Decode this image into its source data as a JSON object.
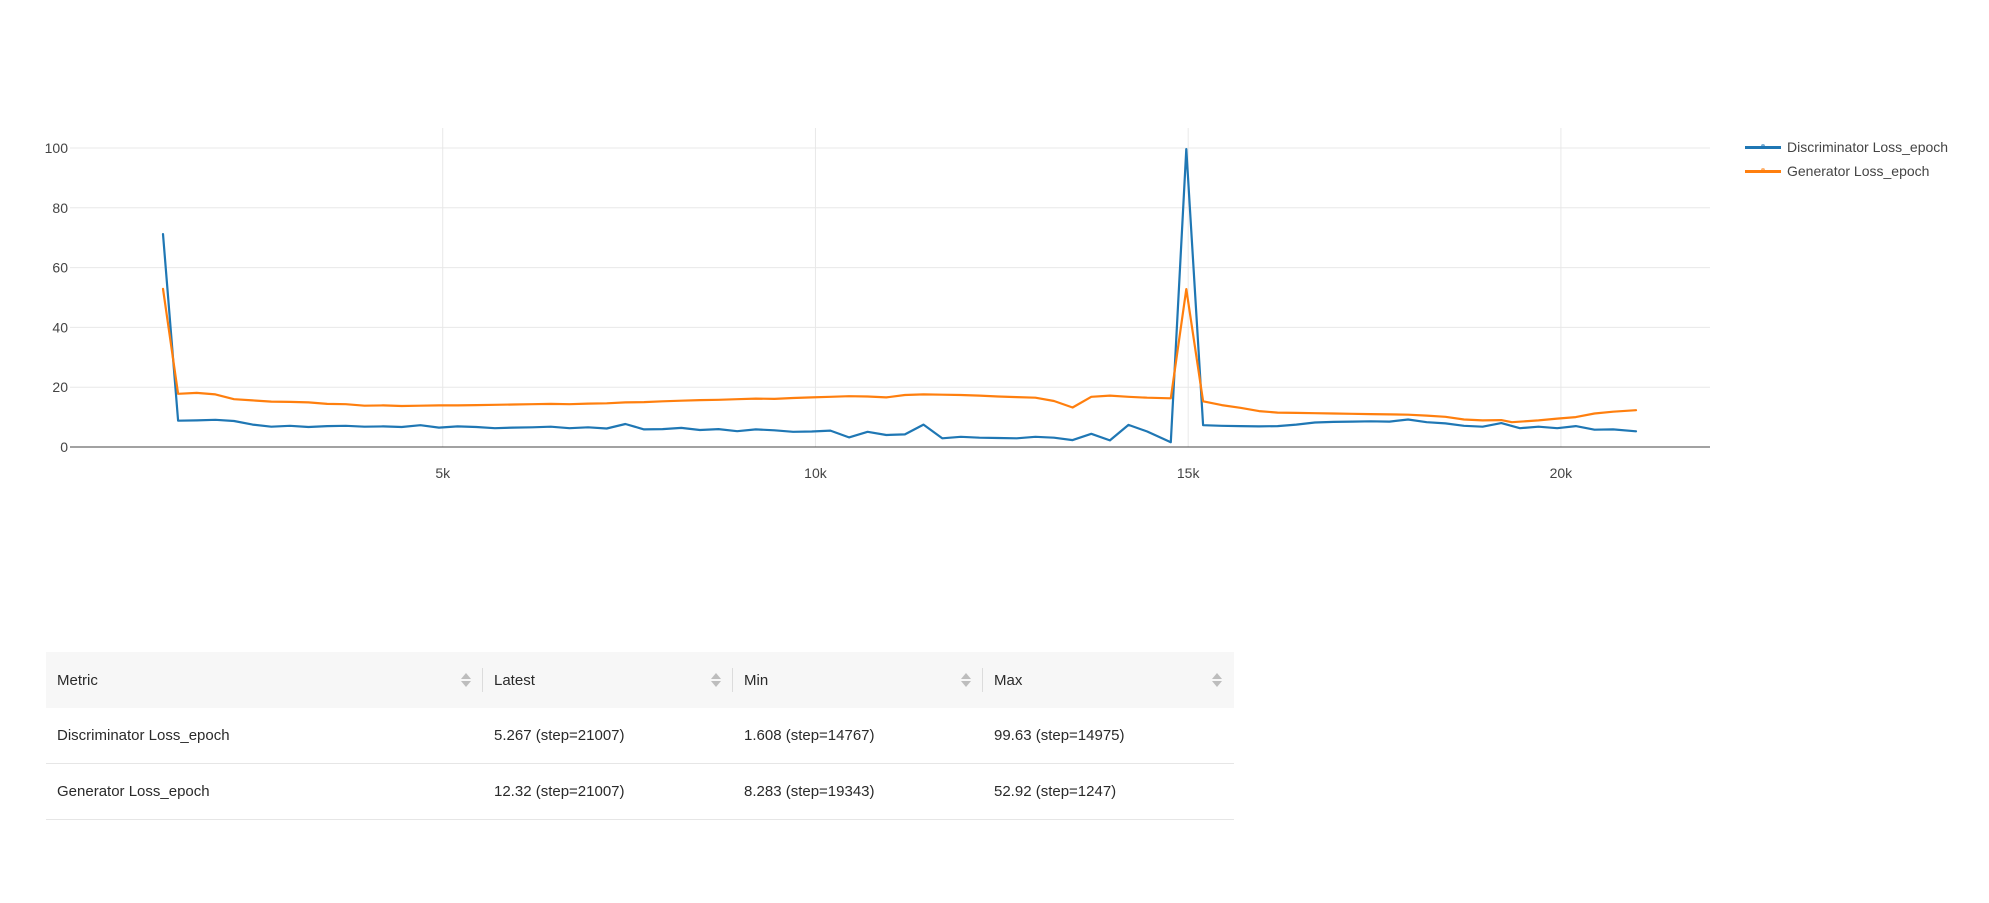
{
  "chart_data": {
    "type": "line",
    "title": "",
    "xlabel": "",
    "ylabel": "",
    "xlim": [
      0,
      22000
    ],
    "ylim": [
      0,
      100
    ],
    "x_ticks": [
      5000,
      10000,
      15000,
      20000
    ],
    "x_tick_labels": [
      "5k",
      "10k",
      "15k",
      "20k"
    ],
    "y_ticks": [
      0,
      20,
      40,
      60,
      80,
      100
    ],
    "y_tick_labels": [
      "0",
      "20",
      "40",
      "60",
      "80",
      "100"
    ],
    "grid": true,
    "legend_position": "top-right",
    "series": [
      {
        "name": "Discriminator Loss_epoch",
        "color": "#1f77b4",
        "x": [
          1247,
          1450,
          1700,
          1950,
          2200,
          2450,
          2700,
          2950,
          3200,
          3450,
          3700,
          3950,
          4200,
          4450,
          4700,
          4950,
          5200,
          5450,
          5700,
          5950,
          6200,
          6450,
          6700,
          6950,
          7200,
          7450,
          7700,
          7950,
          8200,
          8450,
          8700,
          8950,
          9200,
          9450,
          9700,
          9950,
          10200,
          10450,
          10700,
          10950,
          11200,
          11450,
          11700,
          11950,
          12200,
          12450,
          12700,
          12950,
          13200,
          13450,
          13700,
          13950,
          14200,
          14450,
          14767,
          14975,
          15200,
          15450,
          15700,
          15950,
          16200,
          16450,
          16700,
          16950,
          17200,
          17450,
          17700,
          17950,
          18200,
          18450,
          18700,
          18950,
          19200,
          19450,
          19700,
          19950,
          20200,
          20450,
          20700,
          21007
        ],
        "y": [
          71.2,
          8.8,
          8.9,
          9.1,
          8.7,
          7.5,
          6.8,
          7.1,
          6.7,
          7.0,
          7.1,
          6.8,
          6.9,
          6.7,
          7.3,
          6.5,
          6.9,
          6.7,
          6.3,
          6.5,
          6.6,
          6.8,
          6.3,
          6.6,
          6.2,
          7.7,
          5.9,
          6.0,
          6.4,
          5.7,
          6.0,
          5.3,
          5.9,
          5.6,
          5.1,
          5.2,
          5.5,
          3.2,
          5.1,
          4.0,
          4.2,
          7.5,
          2.9,
          3.4,
          3.1,
          3.0,
          2.9,
          3.4,
          3.1,
          2.3,
          4.4,
          2.2,
          7.4,
          5.2,
          1.608,
          99.63,
          7.3,
          7.1,
          7.0,
          6.9,
          7.0,
          7.5,
          8.2,
          8.4,
          8.5,
          8.6,
          8.5,
          9.2,
          8.3,
          7.9,
          7.1,
          6.8,
          8.0,
          6.3,
          6.8,
          6.3,
          7.0,
          5.8,
          5.9,
          5.267
        ]
      },
      {
        "name": "Generator Loss_epoch",
        "color": "#ff7f0e",
        "x": [
          1247,
          1450,
          1700,
          1950,
          2200,
          2450,
          2700,
          2950,
          3200,
          3450,
          3700,
          3950,
          4200,
          4450,
          4700,
          4950,
          5200,
          5450,
          5700,
          5950,
          6200,
          6450,
          6700,
          6950,
          7200,
          7450,
          7700,
          7950,
          8200,
          8450,
          8700,
          8950,
          9200,
          9450,
          9700,
          9950,
          10200,
          10450,
          10700,
          10950,
          11200,
          11450,
          11700,
          11950,
          12200,
          12450,
          12700,
          12950,
          13200,
          13450,
          13700,
          13950,
          14200,
          14450,
          14767,
          14975,
          15200,
          15450,
          15700,
          15950,
          16200,
          16450,
          16700,
          16950,
          17200,
          17450,
          17700,
          17950,
          18200,
          18450,
          18700,
          18950,
          19200,
          19343,
          19700,
          19950,
          20200,
          20450,
          20700,
          21007
        ],
        "y": [
          52.92,
          17.8,
          18.1,
          17.6,
          16.0,
          15.6,
          15.2,
          15.1,
          14.9,
          14.4,
          14.3,
          13.8,
          13.9,
          13.7,
          13.8,
          13.9,
          13.9,
          14.0,
          14.1,
          14.2,
          14.3,
          14.4,
          14.3,
          14.5,
          14.6,
          14.9,
          15.0,
          15.3,
          15.5,
          15.7,
          15.8,
          16.0,
          16.2,
          16.1,
          16.4,
          16.6,
          16.8,
          17.0,
          16.9,
          16.6,
          17.4,
          17.6,
          17.5,
          17.4,
          17.2,
          16.9,
          16.7,
          16.5,
          15.4,
          13.2,
          16.8,
          17.2,
          16.8,
          16.5,
          16.3,
          52.8,
          15.3,
          14.0,
          13.1,
          12.0,
          11.5,
          11.4,
          11.3,
          11.2,
          11.1,
          11.0,
          10.9,
          10.8,
          10.5,
          10.1,
          9.2,
          8.9,
          9.0,
          8.283,
          8.9,
          9.5,
          10.0,
          11.2,
          11.8,
          12.32
        ]
      }
    ]
  },
  "table": {
    "headers": [
      "Metric",
      "Latest",
      "Min",
      "Max"
    ],
    "rows": [
      [
        "Discriminator Loss_epoch",
        "5.267 (step=21007)",
        "1.608 (step=14767)",
        "99.63 (step=14975)"
      ],
      [
        "Generator Loss_epoch",
        "12.32 (step=21007)",
        "8.283 (step=19343)",
        "52.92 (step=1247)"
      ]
    ]
  }
}
